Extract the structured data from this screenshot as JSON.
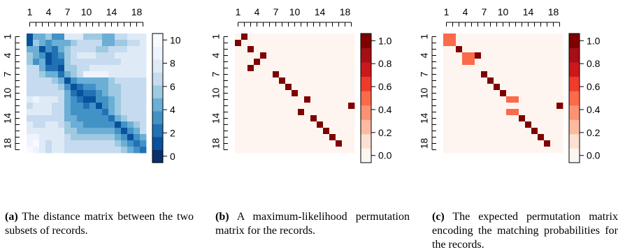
{
  "figure": {
    "panels": [
      {
        "caption_tag": "(a)",
        "caption_text": "The distance matrix between the two subsets of records."
      },
      {
        "caption_tag": "(b)",
        "caption_text": "A maximum-likelihood permutation matrix for the records."
      },
      {
        "caption_tag": "(c)",
        "caption_text": "The expected permutation matrix encoding the matching probabilities for the records."
      }
    ]
  },
  "chart_data": [
    {
      "type": "heatmap",
      "panel": "a",
      "size": 19,
      "x_tick_labels": [
        "1",
        "4",
        "7",
        "10",
        "14",
        "18"
      ],
      "x_tick_positions": [
        1,
        4,
        7,
        10,
        14,
        18
      ],
      "y_tick_labels": [
        "1",
        "4",
        "7",
        "10",
        "14",
        "18"
      ],
      "y_tick_positions": [
        1,
        4,
        7,
        10,
        14,
        18
      ],
      "colorbar_ticks": [
        0,
        2,
        4,
        6,
        8,
        10
      ],
      "value_range": [
        0,
        10
      ],
      "palette": [
        "#08306b",
        "#08519c",
        "#2171b5",
        "#4292c6",
        "#6baed6",
        "#9ecae1",
        "#c6dbef",
        "#deebf7",
        "#eff3ff",
        "#f7fbff"
      ],
      "values": [
        [
          1,
          4,
          4,
          5,
          3,
          3,
          7,
          7,
          7,
          5,
          5,
          5,
          4,
          4,
          6,
          6,
          7,
          7,
          7
        ],
        [
          1,
          5,
          4,
          3,
          4,
          4,
          4,
          5,
          6,
          6,
          6,
          6,
          4,
          4,
          5,
          5,
          6,
          6,
          7
        ],
        [
          4,
          4,
          1,
          3,
          2,
          4,
          5,
          6,
          6,
          6,
          6,
          5,
          5,
          6,
          6,
          6,
          7,
          7,
          7
        ],
        [
          5,
          4,
          3,
          1,
          2,
          3,
          5,
          6,
          7,
          7,
          7,
          6,
          6,
          6,
          7,
          7,
          7,
          7,
          7
        ],
        [
          5,
          3,
          4,
          1,
          2,
          2,
          5,
          6,
          6,
          6,
          6,
          6,
          6,
          6,
          6,
          7,
          7,
          7,
          7
        ],
        [
          6,
          6,
          4,
          2,
          2,
          1,
          5,
          5,
          6,
          6,
          7,
          7,
          7,
          7,
          7,
          7,
          7,
          7,
          7
        ],
        [
          6,
          6,
          5,
          4,
          4,
          2,
          4,
          5,
          6,
          8,
          8,
          8,
          8,
          7,
          7,
          7,
          7,
          7,
          7
        ],
        [
          6,
          6,
          6,
          6,
          5,
          4,
          1,
          3,
          4,
          4,
          4,
          4,
          4,
          5,
          6,
          6,
          6,
          6,
          6
        ],
        [
          6,
          6,
          6,
          6,
          6,
          5,
          3,
          1,
          2,
          3,
          3,
          4,
          4,
          5,
          5,
          6,
          6,
          6,
          6
        ],
        [
          6,
          6,
          6,
          6,
          6,
          6,
          4,
          2,
          1,
          2,
          2,
          3,
          4,
          5,
          5,
          6,
          6,
          6,
          6
        ],
        [
          7,
          8,
          7,
          7,
          7,
          6,
          4,
          3,
          2,
          1,
          1,
          3,
          3,
          4,
          5,
          6,
          6,
          6,
          6
        ],
        [
          6,
          7,
          7,
          7,
          6,
          6,
          4,
          3,
          3,
          2,
          3,
          1,
          3,
          4,
          5,
          6,
          6,
          6,
          6
        ],
        [
          7,
          7,
          7,
          7,
          6,
          6,
          4,
          3,
          3,
          3,
          3,
          3,
          2,
          4,
          5,
          6,
          6,
          6,
          6
        ],
        [
          6,
          6,
          6,
          6,
          6,
          6,
          4,
          4,
          3,
          3,
          3,
          3,
          3,
          2,
          4,
          5,
          6,
          6,
          6
        ],
        [
          7,
          6,
          6,
          7,
          7,
          6,
          5,
          4,
          4,
          3,
          3,
          3,
          3,
          3,
          1,
          3,
          4,
          5,
          6
        ],
        [
          7,
          7,
          7,
          7,
          7,
          7,
          5,
          5,
          4,
          4,
          4,
          4,
          4,
          4,
          3,
          1,
          3,
          4,
          6
        ],
        [
          8,
          8,
          7,
          7,
          7,
          7,
          6,
          5,
          5,
          5,
          5,
          5,
          5,
          5,
          4,
          3,
          1,
          3,
          4
        ],
        [
          8,
          9,
          7,
          6,
          7,
          7,
          6,
          6,
          6,
          6,
          6,
          6,
          6,
          6,
          5,
          4,
          3,
          2,
          3
        ],
        [
          9,
          8,
          7,
          6,
          7,
          7,
          6,
          6,
          6,
          6,
          6,
          6,
          6,
          6,
          6,
          5,
          4,
          3,
          2
        ]
      ]
    },
    {
      "type": "heatmap",
      "panel": "b",
      "size": 19,
      "x_tick_labels": [
        "1",
        "4",
        "7",
        "10",
        "14",
        "18"
      ],
      "x_tick_positions": [
        1,
        4,
        7,
        10,
        14,
        18
      ],
      "y_tick_labels": [
        "1",
        "4",
        "7",
        "10",
        "14",
        "18"
      ],
      "y_tick_positions": [
        1,
        4,
        7,
        10,
        14,
        18
      ],
      "colorbar_ticks": [
        0.0,
        0.2,
        0.4,
        0.6,
        0.8,
        1.0
      ],
      "colorbar_tick_labels": [
        "0.0",
        "0.2",
        "0.4",
        "0.6",
        "0.8",
        "1.0"
      ],
      "value_range": [
        0,
        1
      ],
      "palette": [
        "#fff5f0",
        "#fee0d2",
        "#fcbba1",
        "#fc9272",
        "#fb6a4a",
        "#ef3b2c",
        "#cb181d",
        "#a50f15",
        "#7f0000"
      ],
      "background_value": 0,
      "nonzero_cells": [
        {
          "row": 1,
          "col": 2,
          "value": 1
        },
        {
          "row": 2,
          "col": 1,
          "value": 1
        },
        {
          "row": 3,
          "col": 3,
          "value": 1
        },
        {
          "row": 4,
          "col": 5,
          "value": 1
        },
        {
          "row": 5,
          "col": 4,
          "value": 1
        },
        {
          "row": 6,
          "col": 3,
          "value": 1
        },
        {
          "row": 7,
          "col": 7,
          "value": 1
        },
        {
          "row": 8,
          "col": 8,
          "value": 1
        },
        {
          "row": 9,
          "col": 9,
          "value": 1
        },
        {
          "row": 10,
          "col": 10,
          "value": 1
        },
        {
          "row": 11,
          "col": 12,
          "value": 1
        },
        {
          "row": 12,
          "col": 19,
          "value": 1
        },
        {
          "row": 13,
          "col": 11,
          "value": 1
        },
        {
          "row": 14,
          "col": 13,
          "value": 1
        },
        {
          "row": 15,
          "col": 14,
          "value": 1
        },
        {
          "row": 16,
          "col": 15,
          "value": 1
        },
        {
          "row": 17,
          "col": 16,
          "value": 1
        },
        {
          "row": 18,
          "col": 17,
          "value": 1
        }
      ]
    },
    {
      "type": "heatmap",
      "panel": "c",
      "size": 19,
      "x_tick_labels": [
        "1",
        "4",
        "7",
        "10",
        "14",
        "18"
      ],
      "x_tick_positions": [
        1,
        4,
        7,
        10,
        14,
        18
      ],
      "y_tick_labels": [
        "1",
        "4",
        "7",
        "10",
        "14",
        "18"
      ],
      "y_tick_positions": [
        1,
        4,
        7,
        10,
        14,
        18
      ],
      "colorbar_ticks": [
        0.0,
        0.2,
        0.4,
        0.6,
        0.8,
        1.0
      ],
      "colorbar_tick_labels": [
        "0.0",
        "0.2",
        "0.4",
        "0.6",
        "0.8",
        "1.0"
      ],
      "value_range": [
        0,
        1
      ],
      "palette": [
        "#fff5f0",
        "#fee0d2",
        "#fcbba1",
        "#fc9272",
        "#fb6a4a",
        "#ef3b2c",
        "#cb181d",
        "#a50f15",
        "#7f0000"
      ],
      "background_value": 0,
      "nonzero_cells": [
        {
          "row": 1,
          "col": 1,
          "value": 0.5
        },
        {
          "row": 1,
          "col": 2,
          "value": 0.5
        },
        {
          "row": 2,
          "col": 1,
          "value": 0.5
        },
        {
          "row": 2,
          "col": 2,
          "value": 0.5
        },
        {
          "row": 3,
          "col": 3,
          "value": 1
        },
        {
          "row": 4,
          "col": 4,
          "value": 0.5
        },
        {
          "row": 4,
          "col": 5,
          "value": 0.5
        },
        {
          "row": 5,
          "col": 4,
          "value": 0.5
        },
        {
          "row": 5,
          "col": 5,
          "value": 0.5
        },
        {
          "row": 4,
          "col": 6,
          "value": 1
        },
        {
          "row": 7,
          "col": 7,
          "value": 1
        },
        {
          "row": 8,
          "col": 8,
          "value": 1
        },
        {
          "row": 9,
          "col": 9,
          "value": 1
        },
        {
          "row": 10,
          "col": 10,
          "value": 1
        },
        {
          "row": 11,
          "col": 11,
          "value": 0.5
        },
        {
          "row": 11,
          "col": 12,
          "value": 0.5
        },
        {
          "row": 13,
          "col": 11,
          "value": 0.5
        },
        {
          "row": 13,
          "col": 12,
          "value": 0.5
        },
        {
          "row": 12,
          "col": 19,
          "value": 1
        },
        {
          "row": 14,
          "col": 13,
          "value": 1
        },
        {
          "row": 15,
          "col": 14,
          "value": 1
        },
        {
          "row": 16,
          "col": 15,
          "value": 1
        },
        {
          "row": 17,
          "col": 16,
          "value": 1
        },
        {
          "row": 18,
          "col": 17,
          "value": 1
        }
      ]
    }
  ]
}
